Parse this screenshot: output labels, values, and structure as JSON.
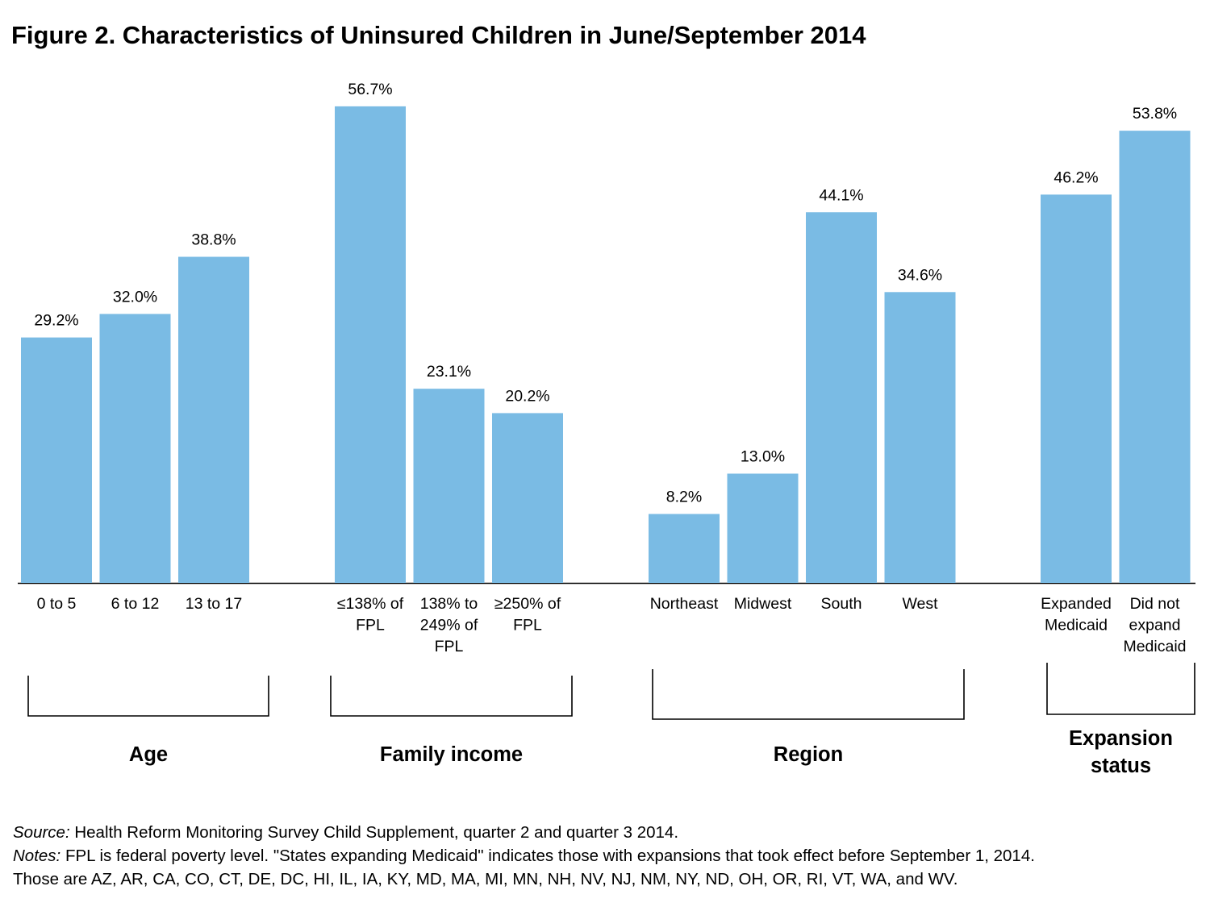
{
  "title": "Figure 2. Characteristics of Uninsured Children in June/September  2014",
  "chart_data": {
    "type": "bar",
    "ylim": [
      0,
      60
    ],
    "bar_color": "#7abbe4",
    "groups": [
      {
        "label": "Age",
        "bars": [
          {
            "category": [
              "0 to 5"
            ],
            "value": 29.2,
            "value_label": "29.2%"
          },
          {
            "category": [
              "6 to 12"
            ],
            "value": 32.0,
            "value_label": "32.0%"
          },
          {
            "category": [
              "13 to 17"
            ],
            "value": 38.8,
            "value_label": "38.8%"
          }
        ]
      },
      {
        "label": "Family income",
        "bars": [
          {
            "category": [
              "≤138% of",
              "FPL"
            ],
            "value": 56.7,
            "value_label": "56.7%"
          },
          {
            "category": [
              "138% to",
              "249% of",
              "FPL"
            ],
            "value": 23.1,
            "value_label": "23.1%"
          },
          {
            "category": [
              "≥250% of",
              "FPL"
            ],
            "value": 20.2,
            "value_label": "20.2%"
          }
        ]
      },
      {
        "label": "Region",
        "bars": [
          {
            "category": [
              "Northeast"
            ],
            "value": 8.2,
            "value_label": "8.2%"
          },
          {
            "category": [
              "Midwest"
            ],
            "value": 13.0,
            "value_label": "13.0%"
          },
          {
            "category": [
              "South"
            ],
            "value": 44.1,
            "value_label": "44.1%"
          },
          {
            "category": [
              "West"
            ],
            "value": 34.6,
            "value_label": "34.6%"
          }
        ]
      },
      {
        "label": "Expansion status",
        "bars": [
          {
            "category": [
              "Expanded",
              "Medicaid"
            ],
            "value": 46.2,
            "value_label": "46.2%"
          },
          {
            "category": [
              "Did not",
              "expand",
              "Medicaid"
            ],
            "value": 53.8,
            "value_label": "53.8%"
          }
        ]
      }
    ]
  },
  "notes": {
    "source_label": "Source:",
    "source_text": " Health Reform Monitoring Survey Child Supplement, quarter 2 and quarter 3 2014.",
    "notes_label": "Notes:",
    "notes_text": " FPL is federal poverty level. \"States expanding Medicaid\" indicates those with expansions that took effect before September 1, 2014.",
    "states_text": "Those are AZ, AR, CA, CO, CT, DE, DC, HI, IL, IA, KY, MD, MA, MI, MN, NH, NV, NJ, NM, NY, ND, OH, OR, RI, VT, WA, and WV."
  }
}
